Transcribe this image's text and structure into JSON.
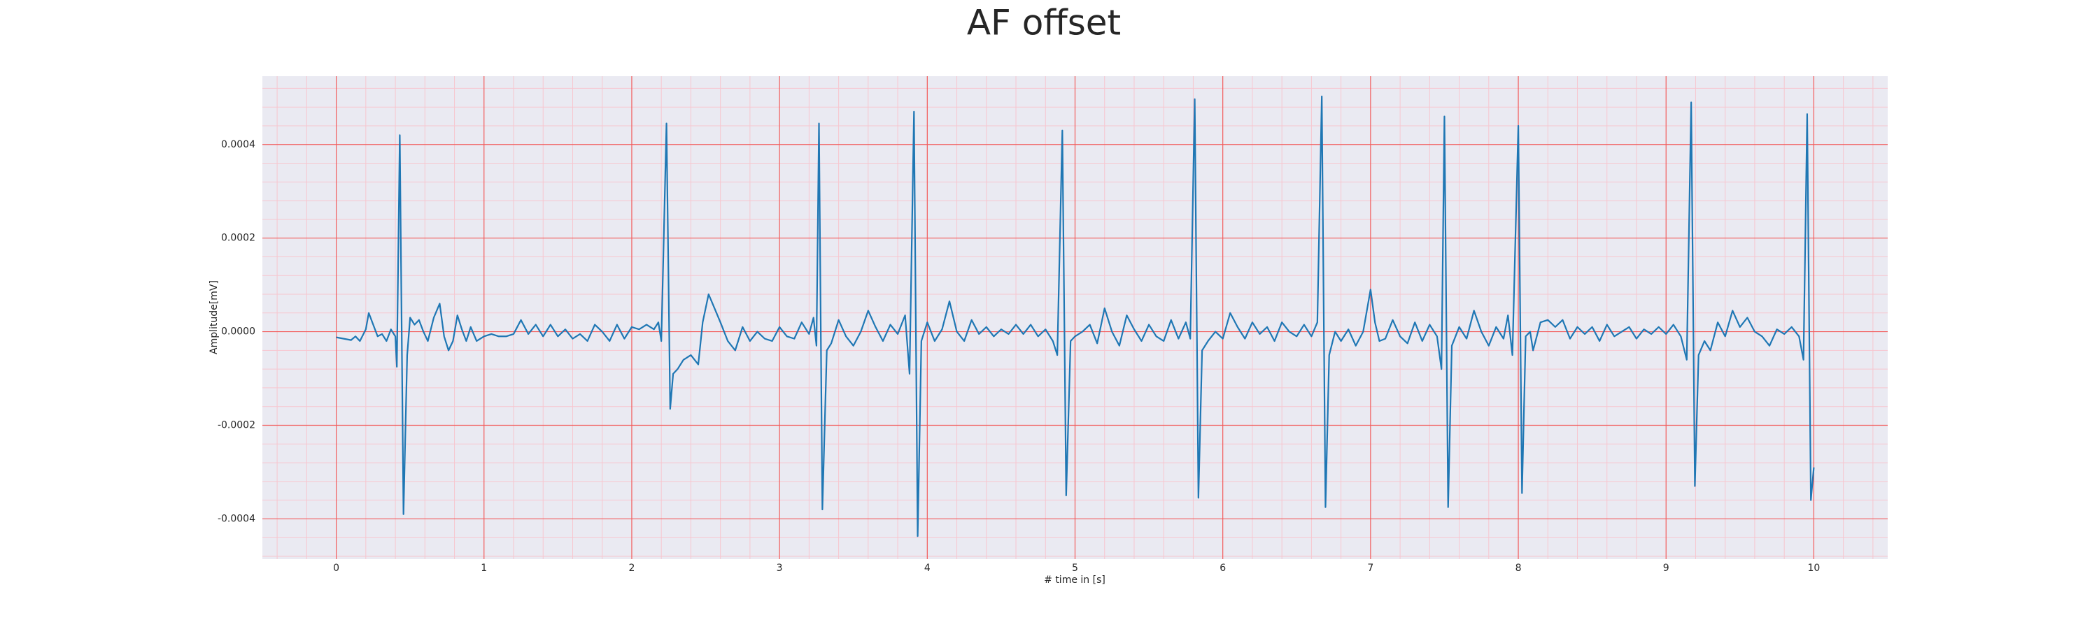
{
  "chart_data": {
    "type": "line",
    "title": "AF offset",
    "xlabel": "# time in [s]",
    "ylabel": "Amplitude[mV]",
    "xlim": [
      -0.5,
      10.5
    ],
    "xticks": [
      0,
      1,
      2,
      3,
      4,
      5,
      6,
      7,
      8,
      9,
      10
    ],
    "ylim": [
      -0.000486,
      0.000546
    ],
    "yticks": [
      -0.0004,
      -0.0002,
      {
        "value": 0,
        "label": "0.0000"
      },
      0.0002,
      0.0004
    ],
    "grid": true,
    "minor_grid": true,
    "series": [
      {
        "color": "#1f77b4",
        "x": [
          0,
          0.05,
          0.1,
          0.13,
          0.16,
          0.2,
          0.22,
          0.25,
          0.28,
          0.31,
          0.34,
          0.37,
          0.4,
          0.41,
          0.43,
          0.455,
          0.48,
          0.5,
          0.53,
          0.56,
          0.59,
          0.62,
          0.66,
          0.7,
          0.73,
          0.76,
          0.79,
          0.82,
          0.85,
          0.88,
          0.91,
          0.95,
          1,
          1.05,
          1.1,
          1.15,
          1.2,
          1.25,
          1.3,
          1.35,
          1.4,
          1.45,
          1.5,
          1.55,
          1.6,
          1.65,
          1.7,
          1.75,
          1.8,
          1.85,
          1.9,
          1.95,
          2,
          2.05,
          2.1,
          2.15,
          2.18,
          2.2,
          2.235,
          2.26,
          2.28,
          2.31,
          2.35,
          2.4,
          2.45,
          2.48,
          2.52,
          2.56,
          2.6,
          2.65,
          2.7,
          2.75,
          2.8,
          2.85,
          2.9,
          2.95,
          3,
          3.05,
          3.1,
          3.15,
          3.2,
          3.23,
          3.25,
          3.267,
          3.29,
          3.32,
          3.35,
          3.4,
          3.45,
          3.5,
          3.55,
          3.6,
          3.65,
          3.7,
          3.75,
          3.8,
          3.85,
          3.88,
          3.91,
          3.935,
          3.96,
          4,
          4.05,
          4.1,
          4.15,
          4.2,
          4.25,
          4.3,
          4.35,
          4.4,
          4.45,
          4.5,
          4.55,
          4.6,
          4.65,
          4.7,
          4.75,
          4.8,
          4.85,
          4.88,
          4.914,
          4.94,
          4.97,
          5,
          5.05,
          5.1,
          5.15,
          5.2,
          5.25,
          5.3,
          5.35,
          5.4,
          5.45,
          5.5,
          5.55,
          5.6,
          5.65,
          5.7,
          5.75,
          5.78,
          5.81,
          5.835,
          5.86,
          5.9,
          5.95,
          6,
          6.05,
          6.1,
          6.15,
          6.2,
          6.25,
          6.3,
          6.35,
          6.4,
          6.45,
          6.5,
          6.55,
          6.6,
          6.64,
          6.67,
          6.695,
          6.72,
          6.76,
          6.8,
          6.85,
          6.9,
          6.95,
          7,
          7.03,
          7.06,
          7.1,
          7.15,
          7.2,
          7.25,
          7.3,
          7.35,
          7.4,
          7.45,
          7.48,
          7.5,
          7.525,
          7.55,
          7.6,
          7.65,
          7.7,
          7.75,
          7.8,
          7.85,
          7.9,
          7.93,
          7.96,
          8,
          8.025,
          8.05,
          8.08,
          8.1,
          8.15,
          8.2,
          8.25,
          8.3,
          8.35,
          8.4,
          8.45,
          8.5,
          8.55,
          8.6,
          8.65,
          8.7,
          8.75,
          8.8,
          8.85,
          8.9,
          8.95,
          9,
          9.05,
          9.1,
          9.14,
          9.17,
          9.195,
          9.22,
          9.26,
          9.3,
          9.35,
          9.4,
          9.45,
          9.5,
          9.55,
          9.6,
          9.65,
          9.7,
          9.75,
          9.8,
          9.85,
          9.9,
          9.93,
          9.955,
          9.98,
          10
        ],
        "values": [
          -1.2e-05,
          -1.5e-05,
          -1.8e-05,
          -1e-05,
          -2e-05,
          5e-06,
          4e-05,
          1.5e-05,
          -1e-05,
          -5e-06,
          -2e-05,
          5e-06,
          -1e-05,
          -7.5e-05,
          0.00042,
          -0.00039,
          -5e-05,
          3e-05,
          1.5e-05,
          2.5e-05,
          0,
          -2e-05,
          3e-05,
          6e-05,
          -1e-05,
          -4e-05,
          -2e-05,
          3.5e-05,
          5e-06,
          -2e-05,
          1e-05,
          -2e-05,
          -1e-05,
          -5e-06,
          -1e-05,
          -1e-05,
          -5e-06,
          2.5e-05,
          -5e-06,
          1.5e-05,
          -1e-05,
          1.5e-05,
          -1e-05,
          5e-06,
          -1.5e-05,
          -5e-06,
          -2e-05,
          1.5e-05,
          0,
          -2e-05,
          1.5e-05,
          -1.5e-05,
          1e-05,
          5e-06,
          1.5e-05,
          5e-06,
          2e-05,
          -2e-05,
          0.000445,
          -0.000165,
          -9e-05,
          -8e-05,
          -6e-05,
          -5e-05,
          -7e-05,
          2e-05,
          8e-05,
          5e-05,
          2e-05,
          -2e-05,
          -4e-05,
          1e-05,
          -2e-05,
          0,
          -1.5e-05,
          -2e-05,
          1e-05,
          -1e-05,
          -1.5e-05,
          2e-05,
          -5e-06,
          3e-05,
          -3e-05,
          0.000445,
          -0.00038,
          -4e-05,
          -2.5e-05,
          2.5e-05,
          -1e-05,
          -3e-05,
          0,
          4.5e-05,
          1e-05,
          -2e-05,
          1.5e-05,
          -5e-06,
          3.5e-05,
          -9e-05,
          0.00047,
          -0.000437,
          -2e-05,
          2e-05,
          -2e-05,
          5e-06,
          6.5e-05,
          0,
          -2e-05,
          2.5e-05,
          -5e-06,
          1e-05,
          -1e-05,
          5e-06,
          -5e-06,
          1.5e-05,
          -5e-06,
          1.5e-05,
          -1e-05,
          5e-06,
          -2e-05,
          -5e-05,
          0.00043,
          -0.00035,
          -2e-05,
          -1e-05,
          0,
          1.5e-05,
          -2.5e-05,
          5e-05,
          0,
          -3e-05,
          3.5e-05,
          5e-06,
          -2e-05,
          1.5e-05,
          -1e-05,
          -2e-05,
          2.5e-05,
          -1.5e-05,
          2e-05,
          -1.5e-05,
          0.000497,
          -0.000355,
          -4e-05,
          -2e-05,
          0,
          -1.5e-05,
          4e-05,
          1e-05,
          -1.5e-05,
          2e-05,
          -5e-06,
          1e-05,
          -2e-05,
          2e-05,
          0,
          -1e-05,
          1.5e-05,
          -1e-05,
          2e-05,
          0.000503,
          -0.000375,
          -5e-05,
          0,
          -2e-05,
          5e-06,
          -3e-05,
          0,
          9e-05,
          2e-05,
          -2e-05,
          -1.5e-05,
          2.5e-05,
          -1e-05,
          -2.5e-05,
          2e-05,
          -2e-05,
          1.5e-05,
          -1e-05,
          -8e-05,
          0.00046,
          -0.000375,
          -3e-05,
          1e-05,
          -1.5e-05,
          4.5e-05,
          0,
          -3e-05,
          1e-05,
          -1.5e-05,
          3.5e-05,
          -5e-05,
          0.00044,
          -0.000345,
          -1e-05,
          0,
          -4e-05,
          2e-05,
          2.5e-05,
          1e-05,
          2.5e-05,
          -1.5e-05,
          1e-05,
          -5e-06,
          1e-05,
          -2e-05,
          1.5e-05,
          -1e-05,
          0,
          1e-05,
          -1.5e-05,
          5e-06,
          -5e-06,
          1e-05,
          -5e-06,
          1.5e-05,
          -1e-05,
          -6e-05,
          0.00049,
          -0.00033,
          -5e-05,
          -2e-05,
          -4e-05,
          2e-05,
          -1e-05,
          4.5e-05,
          1e-05,
          3e-05,
          0,
          -1e-05,
          -3e-05,
          5e-06,
          -5e-06,
          1e-05,
          -1e-05,
          -6e-05,
          0.000465,
          -0.00036,
          -0.00029
        ]
      }
    ]
  }
}
